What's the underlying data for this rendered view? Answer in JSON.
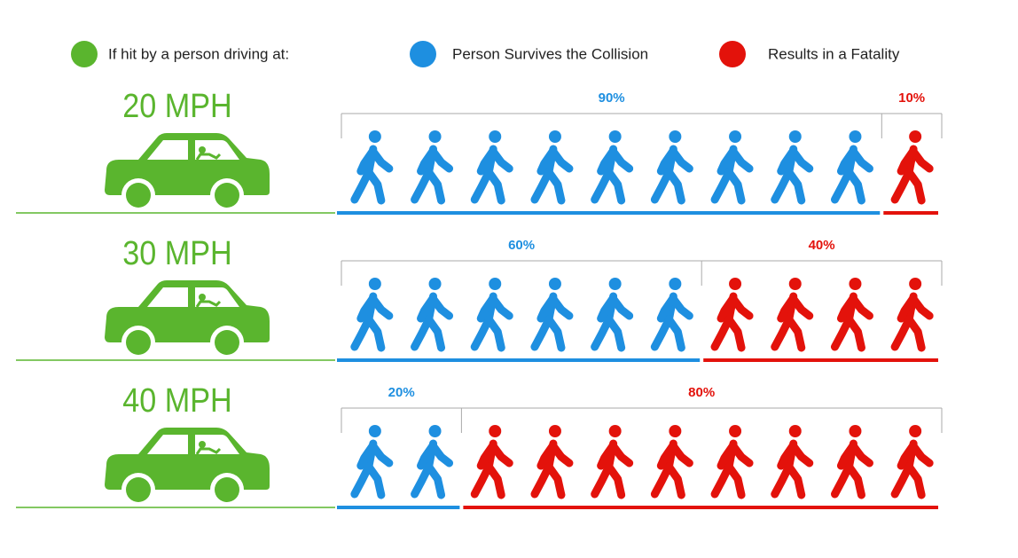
{
  "chart_data": {
    "type": "pictograph",
    "legend_title": "If hit by a person driving at:",
    "legend_title_color": "#5ab52e",
    "categories": [
      "20 MPH",
      "30 MPH",
      "40 MPH"
    ],
    "category_color": "#5ab52e",
    "xlim": [
      0,
      100
    ],
    "series": [
      {
        "name": "Person Survives the Collision",
        "color": "#1e8fe0",
        "values": [
          90,
          60,
          20
        ],
        "value_labels": [
          "90%",
          "60%",
          "20%"
        ]
      },
      {
        "name": "Results in a Fatality",
        "color": "#e3120b",
        "values": [
          10,
          40,
          80
        ],
        "value_labels": [
          "10%",
          "40%",
          "80%"
        ]
      }
    ]
  }
}
